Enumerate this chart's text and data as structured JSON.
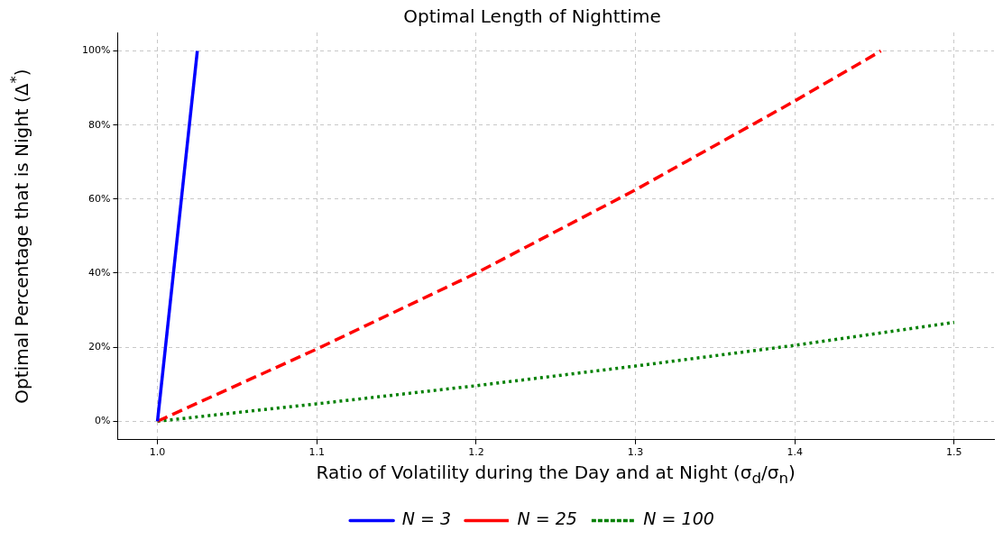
{
  "chart_data": {
    "type": "line",
    "title": "Optimal Length of Nighttime",
    "xlabel": "Ratio of Volatility during the Day and at Night (σ$_{d}$/σ$_{n}$)",
    "ylabel": "Optimal Percentage that is Night (Δ$^{*}$)",
    "series": [
      {
        "name": "N = 3",
        "color": "#0000ff",
        "line_style": "solid",
        "x": [
          1.0,
          1.025
        ],
        "values": [
          0,
          100
        ]
      },
      {
        "name": "N = 25",
        "color": "#ff0000",
        "line_style": "dashed",
        "x": [
          1.0,
          1.1,
          1.2,
          1.3,
          1.4,
          1.454
        ],
        "values": [
          0,
          19.5,
          40,
          62.5,
          86.5,
          100
        ]
      },
      {
        "name": "N = 100",
        "color": "#008000",
        "line_style": "dotted",
        "x": [
          1.0,
          1.1,
          1.2,
          1.3,
          1.4,
          1.5
        ],
        "values": [
          0,
          4.7,
          9.6,
          14.9,
          20.5,
          26.7
        ]
      }
    ],
    "xlim": [
      0.975,
      1.525
    ],
    "xticks": [
      {
        "value": 1,
        "label": "1.0"
      },
      1.1,
      1.2,
      1.3,
      1.4,
      1.5
    ],
    "ylim": [
      -5,
      105
    ],
    "yticks": [
      {
        "value": 0,
        "label": "0%"
      },
      {
        "value": 20,
        "label": "20%"
      },
      {
        "value": 40,
        "label": "40%"
      },
      {
        "value": 60,
        "label": "60%"
      },
      {
        "value": 80,
        "label": "80%"
      },
      {
        "value": 100,
        "label": "100%"
      }
    ],
    "grid": true,
    "legend": "bottom",
    "marker": "none"
  }
}
